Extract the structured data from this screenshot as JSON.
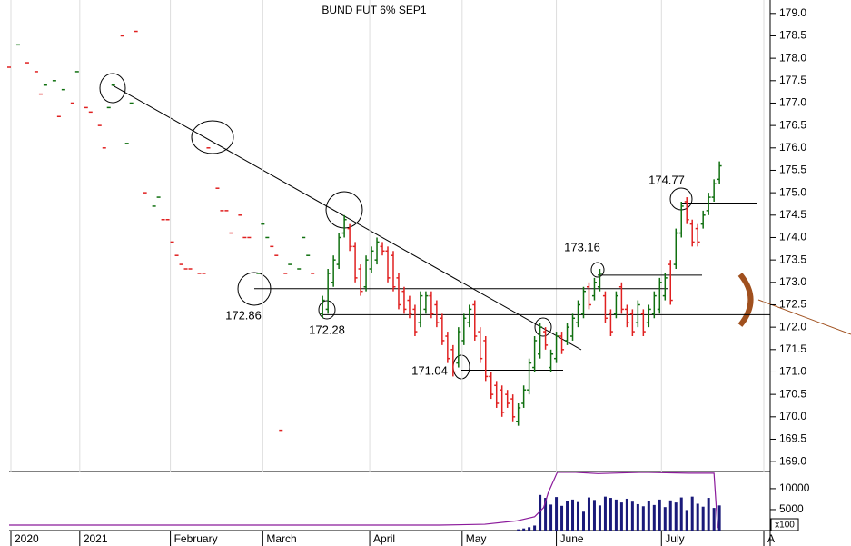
{
  "chart_data": {
    "type": "ohlc",
    "title": "BUND FUT 6% SEP1",
    "xlim": [
      0,
      168
    ],
    "xticks": [
      {
        "value": 0.4,
        "label": "2020"
      },
      {
        "value": 15.6,
        "label": "2021"
      },
      {
        "value": 35.6,
        "label": "February"
      },
      {
        "value": 56,
        "label": "March"
      },
      {
        "value": 79.6,
        "label": "April"
      },
      {
        "value": 100,
        "label": "May"
      },
      {
        "value": 120.8,
        "label": "June"
      },
      {
        "value": 144,
        "label": "July"
      },
      {
        "value": 166.6,
        "label": "A"
      }
    ],
    "ylim": [
      168.78,
      179.3
    ],
    "yticks": [
      {
        "value": 169,
        "label": "169.0"
      },
      169.5,
      {
        "value": 170,
        "label": "170.0"
      },
      170.5,
      {
        "value": 171,
        "label": "171.0"
      },
      171.5,
      {
        "value": 172,
        "label": "172.0"
      },
      172.5,
      {
        "value": 173,
        "label": "173.0"
      },
      173.5,
      {
        "value": 174,
        "label": "174.0"
      },
      174.5,
      {
        "value": 175,
        "label": "175.0"
      },
      175.5,
      {
        "value": 176,
        "label": "176.0"
      },
      176.5,
      {
        "value": 177,
        "label": "177.0"
      },
      177.5,
      {
        "value": 178,
        "label": "178.0"
      },
      178.5,
      {
        "value": 179,
        "label": "179.0"
      }
    ],
    "grid": true,
    "dashes": {
      "x": [
        0,
        2,
        4,
        6,
        7,
        8,
        10,
        11,
        12,
        14,
        15,
        17,
        18,
        20,
        21,
        22,
        23,
        25,
        26,
        27,
        28,
        30,
        32,
        33,
        34,
        35,
        36,
        37,
        38,
        39,
        40,
        42,
        43,
        44,
        46,
        47,
        48,
        49,
        51,
        52,
        53,
        55,
        56,
        57,
        58,
        59,
        60,
        61,
        62,
        64,
        65,
        66,
        67
      ],
      "values": [
        177.8,
        178.3,
        177.9,
        177.7,
        177.2,
        177.4,
        177.5,
        176.7,
        177.3,
        177.0,
        177.7,
        176.9,
        176.8,
        176.5,
        176.0,
        176.9,
        177.4,
        178.5,
        176.1,
        177.0,
        178.6,
        175.0,
        174.7,
        174.9,
        174.4,
        174.4,
        173.9,
        173.6,
        173.4,
        173.3,
        173.3,
        173.2,
        173.2,
        176.0,
        175.1,
        174.6,
        174.6,
        174.1,
        174.5,
        174.0,
        174.0,
        173.2,
        174.3,
        174.0,
        173.8,
        173.6,
        169.7,
        173.2,
        173.4,
        173.3,
        174.0,
        173.6,
        173.2
      ],
      "colors": [
        "#e02020",
        "#107010",
        "#e02020",
        "#e02020",
        "#e02020",
        "#107010",
        "#107010",
        "#e02020",
        "#107010",
        "#e02020",
        "#107010",
        "#e02020",
        "#e02020",
        "#e02020",
        "#e02020",
        "#107010",
        "#107010",
        "#e02020",
        "#107010",
        "#107010",
        "#e02020",
        "#e02020",
        "#107010",
        "#107010",
        "#e02020",
        "#e02020",
        "#e02020",
        "#e02020",
        "#e02020",
        "#e02020",
        "#e02020",
        "#e02020",
        "#e02020",
        "#e02020",
        "#e02020",
        "#e02020",
        "#e02020",
        "#e02020",
        "#e02020",
        "#e02020",
        "#e02020",
        "#107010",
        "#107010",
        "#107010",
        "#e02020",
        "#e02020",
        "#e02020",
        "#e02020",
        "#107010",
        "#107010",
        "#107010",
        "#107010",
        "#e02020"
      ]
    },
    "bars": {
      "up_color": "#107010",
      "down_color": "#e02020",
      "x": [
        69.2,
        70.4,
        71.6,
        72.8,
        74,
        75.2,
        76.4,
        77.6,
        78.8,
        80,
        81.2,
        82.4,
        83.6,
        84.8,
        86,
        87.2,
        88.4,
        89.6,
        90.8,
        92,
        93.2,
        94.4,
        95.6,
        96.8,
        98,
        99.2,
        100.4,
        101.6,
        102.8,
        104,
        105.2,
        106.4,
        107.6,
        108.8,
        110,
        111.2,
        112.4,
        113.6,
        114.8,
        116,
        117.2,
        118.4,
        119.6,
        120.8,
        122,
        123.2,
        124.4,
        125.6,
        126.8,
        128,
        129.2,
        130.4,
        131.6,
        132.8,
        134,
        135.2,
        136.4,
        137.6,
        138.8,
        140,
        141.2,
        142.4,
        143.6,
        144.8,
        146,
        147.2,
        148.4,
        149.6,
        150.8,
        152,
        153.2,
        154.4,
        155.6,
        156.8
      ],
      "high": [
        172.7,
        173.3,
        173.6,
        174.1,
        174.5,
        174.3,
        173.9,
        173.4,
        173.6,
        173.8,
        174.0,
        173.9,
        173.8,
        173.7,
        173.2,
        172.9,
        172.7,
        172.5,
        172.8,
        172.8,
        172.8,
        172.6,
        172.3,
        171.9,
        171.6,
        172.0,
        172.3,
        172.5,
        172.6,
        172.0,
        171.8,
        171.0,
        170.8,
        170.7,
        170.6,
        170.5,
        170.3,
        170.7,
        171.3,
        171.8,
        172.1,
        172.0,
        171.5,
        171.9,
        171.9,
        172.1,
        172.3,
        172.6,
        172.9,
        173.0,
        173.1,
        173.3,
        172.8,
        172.4,
        172.8,
        173.0,
        172.5,
        172.4,
        172.6,
        172.4,
        172.5,
        172.8,
        173.1,
        173.2,
        173.5,
        174.2,
        174.8,
        174.9,
        174.4,
        174.3,
        174.6,
        175.0,
        175.3,
        175.7
      ],
      "low": [
        172.2,
        172.3,
        172.9,
        173.3,
        174.0,
        173.7,
        173.0,
        172.7,
        172.8,
        173.2,
        173.4,
        173.6,
        173.0,
        172.8,
        172.4,
        172.3,
        172.2,
        171.8,
        172.0,
        172.3,
        172.2,
        172.0,
        171.6,
        171.2,
        170.9,
        171.1,
        171.6,
        172.0,
        171.7,
        171.2,
        170.8,
        170.4,
        170.2,
        170.0,
        170.2,
        169.9,
        169.8,
        170.2,
        170.5,
        171.0,
        171.3,
        171.5,
        171.0,
        171.2,
        171.4,
        171.6,
        171.7,
        172.0,
        172.2,
        172.4,
        172.6,
        172.8,
        172.1,
        171.8,
        172.2,
        172.3,
        172.0,
        171.8,
        172.0,
        171.8,
        172.0,
        172.2,
        172.3,
        172.6,
        172.5,
        173.3,
        174.0,
        174.3,
        173.8,
        173.8,
        174.2,
        174.5,
        174.8,
        175.2
      ],
      "open": [
        172.3,
        172.4,
        173.0,
        173.4,
        174.1,
        174.2,
        173.8,
        173.3,
        172.9,
        173.3,
        173.5,
        173.8,
        173.7,
        173.6,
        173.1,
        172.8,
        172.6,
        172.4,
        172.1,
        172.4,
        172.7,
        172.5,
        172.2,
        171.8,
        171.5,
        171.2,
        171.7,
        172.1,
        172.5,
        171.9,
        171.7,
        170.9,
        170.7,
        170.6,
        170.5,
        170.4,
        169.9,
        170.3,
        170.6,
        171.1,
        171.4,
        171.9,
        171.1,
        171.3,
        171.8,
        171.7,
        171.8,
        172.1,
        172.3,
        172.9,
        172.7,
        172.9,
        172.7,
        172.3,
        172.3,
        172.9,
        172.4,
        172.3,
        172.1,
        172.3,
        172.1,
        172.3,
        172.4,
        172.7,
        173.4,
        173.4,
        174.1,
        174.8,
        174.3,
        174.2,
        174.3,
        174.6,
        174.9,
        175.3
      ],
      "close": [
        172.6,
        173.2,
        173.5,
        174.0,
        174.4,
        173.8,
        173.1,
        172.8,
        173.5,
        173.7,
        173.9,
        173.7,
        173.1,
        172.9,
        172.5,
        172.4,
        172.3,
        171.9,
        172.7,
        172.7,
        172.3,
        172.1,
        171.7,
        171.3,
        171.0,
        171.9,
        172.2,
        172.4,
        171.8,
        171.3,
        170.9,
        170.5,
        170.3,
        170.1,
        170.3,
        170.0,
        170.2,
        170.6,
        171.2,
        171.7,
        172.0,
        171.6,
        171.4,
        171.8,
        171.5,
        172.0,
        172.2,
        172.5,
        172.8,
        172.5,
        173.0,
        173.2,
        172.2,
        171.9,
        172.7,
        172.4,
        172.1,
        171.9,
        172.5,
        171.9,
        172.4,
        172.7,
        173.0,
        173.1,
        172.6,
        174.1,
        174.7,
        174.4,
        173.9,
        173.9,
        174.5,
        174.9,
        175.2,
        175.6
      ]
    },
    "levels": [
      172.86,
      172.28,
      171.04,
      173.16,
      174.77
    ],
    "volume": {
      "color": "#1a1a7a",
      "ylim": [
        0,
        14100
      ],
      "yticks": [
        5000,
        10000
      ],
      "unit": "x100",
      "x": [
        112.4,
        113.6,
        114.8,
        116,
        117.2,
        118.4,
        119.6,
        120.8,
        122,
        123.2,
        124.4,
        125.6,
        126.8,
        128,
        129.2,
        130.4,
        131.6,
        132.8,
        134,
        135.2,
        136.4,
        137.6,
        138.8,
        140,
        141.2,
        142.4,
        143.6,
        144.8,
        146,
        147.2,
        148.4,
        149.6,
        150.8,
        152,
        153.2,
        154.4,
        155.6,
        156.8
      ],
      "values": [
        300,
        500,
        800,
        1200,
        8500,
        7800,
        6200,
        8000,
        5900,
        7000,
        7400,
        6800,
        4500,
        7900,
        7300,
        6000,
        8100,
        7800,
        7400,
        6700,
        7600,
        6900,
        6300,
        5800,
        7000,
        6100,
        7400,
        5600,
        7200,
        6700,
        7900,
        4900,
        8100,
        6400,
        5700,
        7800,
        5400,
        6000
      ]
    },
    "open_interest": {
      "color": "#8b1a9b",
      "x": [
        0,
        95,
        105,
        112,
        116,
        118,
        119,
        121,
        125,
        130,
        140,
        150,
        155.6,
        156.4
      ],
      "values": [
        1300,
        1300,
        1500,
        2300,
        3300,
        5500,
        9000,
        13900,
        13900,
        13600,
        13900,
        13700,
        13700,
        600
      ]
    }
  }
}
